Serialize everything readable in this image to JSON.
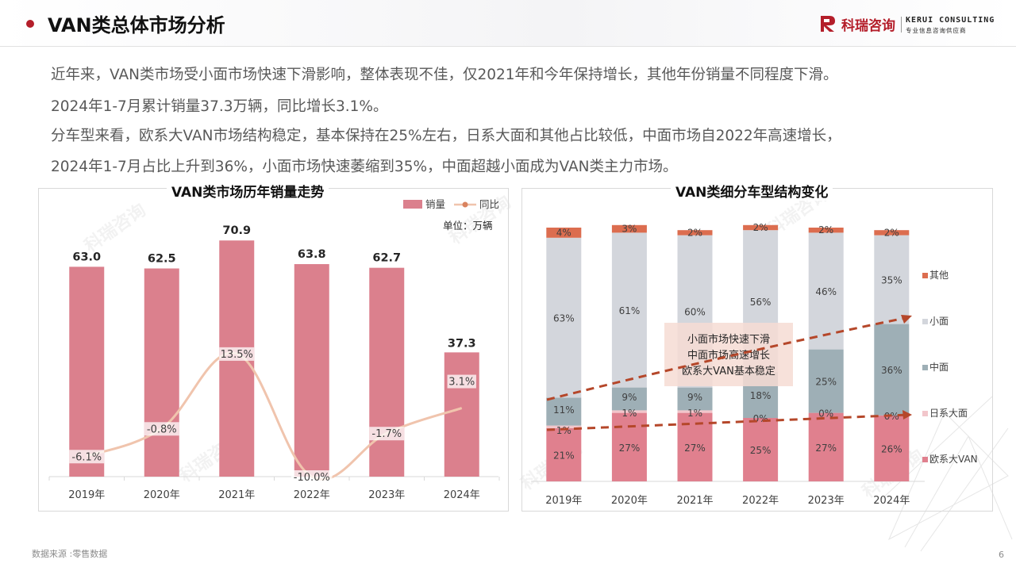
{
  "header": {
    "title": "VAN类总体市场分析",
    "logo_cn": "科瑞咨询",
    "logo_en": "KERUI CONSULTING",
    "logo_sub": "专业信息咨询供应商",
    "accent_color": "#b41e2a"
  },
  "summary": [
    "近年来，VAN类市场受小面市场快速下滑影响，整体表现不佳，仅2021年和今年保持增长，其他年份销量不同程度下滑。",
    "2024年1-7月累计销量37.3万辆，同比增长3.1%。",
    "分车型来看，欧系大VAN市场结构稳定，基本保持在25%左右，日系大面和其他占比较低，中面市场自2022年高速增长，",
    "2024年1-7月占比上升到36%，小面市场快速萎缩到35%，中面超越小面成为VAN类主力市场。"
  ],
  "watermark_text": "科瑞咨询",
  "footer": {
    "source": "数据来源 :零售数据",
    "page": "6"
  },
  "chart_data": [
    {
      "type": "bar",
      "title": "VAN类市场历年销量走势",
      "unit_label": "单位：万辆",
      "categories": [
        "2019年",
        "2020年",
        "2021年",
        "2022年",
        "2023年",
        "2024年"
      ],
      "series": [
        {
          "name": "销量",
          "kind": "bar",
          "color": "#db808d",
          "values": [
            63.0,
            62.5,
            70.9,
            63.8,
            62.7,
            37.3
          ],
          "labels": [
            "63.0",
            "62.5",
            "70.9",
            "63.8",
            "62.7",
            "37.3"
          ]
        },
        {
          "name": "同比",
          "kind": "line",
          "color": "#f0c4ad",
          "smooth": true,
          "values": [
            -6.1,
            -0.8,
            13.5,
            -10.0,
            -1.7,
            3.1
          ],
          "labels": [
            "-6.1%",
            "-0.8%",
            "13.5%",
            "-10.0%",
            "-1.7%",
            "3.1%"
          ]
        }
      ],
      "legend_position": "top-right",
      "grid": false
    },
    {
      "type": "bar",
      "stacked": true,
      "title": "VAN类细分车型结构变化",
      "categories": [
        "2019年",
        "2020年",
        "2021年",
        "2022年",
        "2023年",
        "2024年"
      ],
      "series": [
        {
          "name": "欧系大VAN",
          "color": "#e0808e",
          "values": [
            21,
            27,
            27,
            25,
            27,
            26
          ]
        },
        {
          "name": "日系大面",
          "color": "#f2c6cb",
          "values": [
            1,
            1,
            1,
            0,
            0,
            0
          ]
        },
        {
          "name": "中面",
          "color": "#9eafb6",
          "values": [
            11,
            9,
            9,
            18,
            25,
            36
          ]
        },
        {
          "name": "小面",
          "color": "#d3d6dc",
          "values": [
            63,
            61,
            60,
            56,
            46,
            35
          ]
        },
        {
          "name": "其他",
          "color": "#dc6d4f",
          "values": [
            4,
            3,
            2,
            2,
            2,
            2
          ]
        }
      ],
      "annotation": [
        "小面市场快速下滑",
        "中面市场高速增长",
        "欧系大VAN基本稳定"
      ],
      "trend_color": "#b5472a",
      "legend_position": "right",
      "grid": false
    }
  ]
}
